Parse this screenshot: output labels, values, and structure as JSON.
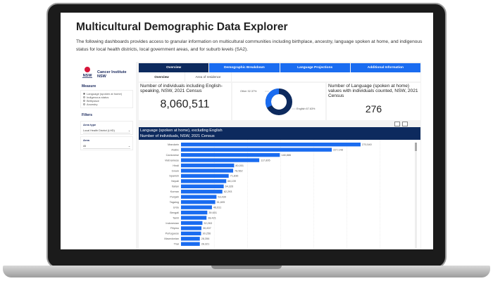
{
  "page": {
    "title": "Multicultural Demographic Data Explorer",
    "description": "The following dashboards provides access to granular information on multicultural communities including birthplace, ancestry, language spoken at home, and indigenous status for local health districts, local government areas, and for suburb levels (SA2)."
  },
  "sidebar": {
    "org": "Cancer Institute NSW",
    "logo_text": "NSW",
    "measure_label": "Measure",
    "measures": [
      "Language (spoken at home)",
      "Indigenous status",
      "Birthplace",
      "Ancestry"
    ],
    "selected_measure": 0,
    "filters_label": "Filters",
    "area_type_label": "Area type",
    "area_type_value": "Local Health District (LHD)",
    "area_label": "Area",
    "area_value": "All"
  },
  "tabs": [
    "Overview",
    "Demographic Breakdown",
    "Language Projections",
    "Additional Information"
  ],
  "subtabs": [
    "Overview",
    "Area of residence"
  ],
  "kpi1": {
    "title": "Number of individuals including English-speaking, NSW, 2021 Census",
    "value": "8,060,511"
  },
  "donut": {
    "other_label": "Other 32.37%",
    "english_label": "English 67.63%",
    "other": 32.37,
    "english": 67.63,
    "colors": {
      "english": "#0d2a5e",
      "other": "#1a6cf0"
    }
  },
  "kpi2": {
    "title": "Number of Language (spoken at home) values with individuals counted, NSW, 2021 Census",
    "value": "276"
  },
  "chart_header": {
    "title": "Language (spoken at home), excluding English",
    "subtitle": "Number of individuals, NSW, 2021 Census"
  },
  "chart_data": {
    "type": "bar",
    "orientation": "horizontal",
    "color": "#1a6cf0",
    "grid": true,
    "categories": [
      "Mandarin",
      "Arabic",
      "Cantonese",
      "Vietnamese",
      "Hindi",
      "Greek",
      "Spanish",
      "Nepali",
      "Italian",
      "Korean",
      "Punjabi",
      "Tagalog",
      "Urdu",
      "Bengali",
      "Tamil",
      "Indonesian",
      "Filipino",
      "Portuguese",
      "Macedonian",
      "Thai"
    ],
    "values": [
      270540,
      227148,
      148886,
      117895,
      80001,
      78562,
      71836,
      68139,
      64326,
      62293,
      53439,
      51605,
      46611,
      39601,
      38421,
      32263,
      30837,
      30256,
      28356,
      28321
    ],
    "labels": [
      "270,540",
      "227,148",
      "148,886",
      "117,895",
      "80,001",
      "78,562",
      "71,836",
      "68,139",
      "64,326",
      "62,293",
      "53,439",
      "51,605",
      "46,611",
      "39,601",
      "38,421",
      "32,263",
      "30,837",
      "30,256",
      "28,356",
      "28,321"
    ]
  }
}
